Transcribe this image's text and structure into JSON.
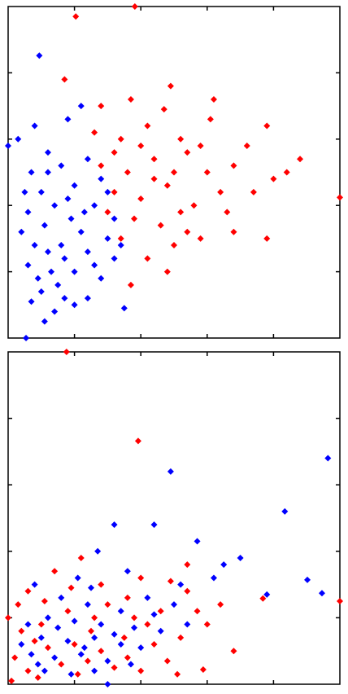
{
  "chart_data": [
    {
      "type": "scatter",
      "xlim": [
        0,
        5
      ],
      "ylim": [
        0,
        5
      ],
      "xticks": [
        1,
        2,
        3,
        4
      ],
      "yticks": [
        1,
        2,
        3,
        4
      ],
      "series": [
        {
          "color": "#0000ff",
          "x": [
            0.47,
            0.27,
            0.0,
            0.4,
            0.15,
            0.9,
            1.1,
            0.6,
            0.35,
            0.8,
            1.2,
            0.5,
            1.0,
            1.4,
            0.3,
            0.7,
            1.3,
            1.6,
            0.2,
            0.55,
            0.95,
            1.5,
            0.4,
            0.8,
            1.2,
            1.6,
            0.3,
            0.65,
            1.0,
            1.4,
            0.5,
            0.85,
            1.2,
            0.35,
            0.75,
            1.1,
            0.6,
            0.9,
            1.5,
            0.25,
            0.7,
            1.0,
            0.45,
            1.3,
            1.7,
            0.6,
            1.15,
            0.85,
            1.75,
            0.55
          ],
          "values": [
            4.26,
            0.0,
            2.9,
            3.2,
            3.0,
            3.3,
            3.5,
            2.8,
            2.5,
            2.6,
            2.7,
            2.2,
            2.3,
            2.4,
            1.9,
            2.0,
            2.0,
            1.8,
            1.6,
            1.7,
            1.8,
            1.5,
            1.4,
            1.4,
            1.3,
            1.2,
            1.1,
            1.0,
            1.0,
            0.9,
            0.7,
            0.6,
            0.6,
            0.55,
            0.8,
            1.6,
            1.3,
            2.1,
            2.2,
            2.2,
            0.4,
            0.5,
            0.9,
            1.1,
            1.4,
            2.5,
            1.9,
            1.2,
            0.45,
            0.25
          ]
        },
        {
          "color": "#ff0000",
          "x": [
            1.02,
            1.91,
            5.0,
            0.85,
            1.4,
            1.85,
            2.45,
            3.1,
            1.3,
            1.7,
            2.1,
            2.6,
            2.9,
            3.9,
            1.4,
            1.8,
            2.2,
            2.5,
            3.0,
            3.4,
            4.4,
            1.6,
            2.0,
            2.4,
            2.8,
            3.2,
            3.7,
            4.0,
            1.9,
            2.3,
            2.7,
            3.3,
            1.7,
            2.5,
            2.1,
            2.9,
            3.4,
            3.9,
            2.4,
            1.85,
            2.2,
            2.7,
            1.5,
            2.0,
            3.6,
            4.2,
            3.05,
            2.35,
            1.6,
            2.6
          ],
          "values": [
            4.85,
            5.0,
            2.12,
            3.9,
            3.5,
            3.6,
            3.8,
            3.6,
            3.1,
            3.0,
            3.2,
            3.0,
            2.9,
            3.2,
            2.6,
            2.5,
            2.7,
            2.5,
            2.5,
            2.6,
            2.7,
            2.2,
            2.1,
            2.3,
            2.0,
            2.2,
            2.2,
            2.4,
            1.8,
            1.7,
            1.6,
            1.9,
            1.5,
            1.4,
            1.2,
            1.5,
            1.6,
            1.5,
            1.0,
            0.8,
            2.4,
            2.8,
            1.9,
            2.9,
            2.9,
            2.5,
            3.3,
            3.45,
            2.8,
            1.9
          ]
        }
      ]
    },
    {
      "type": "scatter",
      "xlim": [
        0,
        5
      ],
      "ylim": [
        0,
        5
      ],
      "xticks": [
        1,
        2,
        3,
        4
      ],
      "yticks": [
        1,
        2,
        3,
        4
      ],
      "series": [
        {
          "color": "#ff0000",
          "x": [
            1.96,
            0.88,
            5.0,
            3.84,
            2.94,
            0.0,
            0.1,
            0.3,
            0.7,
            1.1,
            2.0,
            2.7,
            3.0,
            2.7,
            1.4,
            0.2,
            0.5,
            0.9,
            1.3,
            1.8,
            2.3,
            2.6,
            0.3,
            0.6,
            1.0,
            1.4,
            1.8,
            2.2,
            0.45,
            0.8,
            1.2,
            1.6,
            2.0,
            2.4,
            0.15,
            0.55,
            1.5,
            2.1,
            2.45,
            3.2,
            0.05,
            1.05,
            1.75,
            2.85,
            0.95,
            0.4,
            1.25,
            3.4,
            2.55,
            1.9
          ],
          "values": [
            3.66,
            5.0,
            1.25,
            1.29,
            0.22,
            1.0,
            0.4,
            1.4,
            1.7,
            1.9,
            1.6,
            1.4,
            0.9,
            1.8,
            1.5,
            0.8,
            0.9,
            1.1,
            1.0,
            1.3,
            1.1,
            0.7,
            0.2,
            0.55,
            0.6,
            0.5,
            0.4,
            0.6,
            0.1,
            0.3,
            0.35,
            0.25,
            0.2,
            0.35,
            1.2,
            1.25,
            1.2,
            0.9,
            1.55,
            1.2,
            0.05,
            0.15,
            0.7,
            1.1,
            1.45,
            0.65,
            0.8,
            0.5,
            0.15,
            1.0
          ]
        },
        {
          "color": "#0000ff",
          "x": [
            4.82,
            4.17,
            4.51,
            4.73,
            1.5,
            3.9,
            2.45,
            2.2,
            2.85,
            3.25,
            1.6,
            1.35,
            1.8,
            2.6,
            3.1,
            1.05,
            0.4,
            0.8,
            1.2,
            1.7,
            2.1,
            2.5,
            0.3,
            0.6,
            1.0,
            1.4,
            1.9,
            2.3,
            0.5,
            0.9,
            1.3,
            1.7,
            2.0,
            0.35,
            0.7,
            1.1,
            1.5,
            1.85,
            0.55,
            0.95,
            1.3,
            0.2,
            1.6,
            2.7,
            0.75,
            1.15,
            2.2,
            3.5,
            1.25,
            0.45
          ],
          "values": [
            3.4,
            2.6,
            1.57,
            1.37,
            0.0,
            1.35,
            3.2,
            2.4,
            2.15,
            1.8,
            2.4,
            2.0,
            1.7,
            1.5,
            1.6,
            1.6,
            1.5,
            1.3,
            1.2,
            1.1,
            1.3,
            1.2,
            0.9,
            1.0,
            0.95,
            0.9,
            0.85,
            0.8,
            0.7,
            0.65,
            0.7,
            0.6,
            0.55,
            0.45,
            0.4,
            0.45,
            0.35,
            0.3,
            0.2,
            0.15,
            0.2,
            0.6,
            0.75,
            0.9,
            0.85,
            0.55,
            1.05,
            1.9,
            1.45,
            0.3
          ]
        }
      ]
    }
  ]
}
